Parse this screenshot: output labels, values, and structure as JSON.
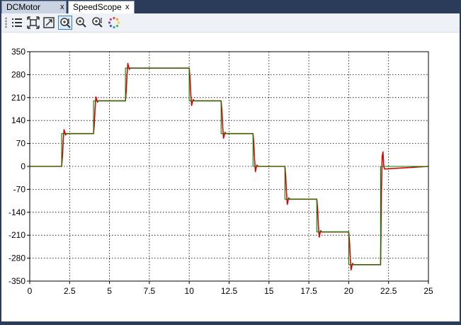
{
  "tabs": [
    {
      "label": "DCMotor",
      "close": "x",
      "active": false
    },
    {
      "label": "SpeedScope",
      "close": "x",
      "active": true
    }
  ],
  "toolbar": {
    "buttons": [
      {
        "icon": "legend-list-icon",
        "active": false
      },
      {
        "icon": "autoscale-icon",
        "active": false
      },
      {
        "icon": "fit-to-view-icon",
        "active": false
      },
      {
        "icon": "zoom-x-icon",
        "active": true
      },
      {
        "icon": "zoom-in-icon",
        "active": false
      },
      {
        "icon": "zoom-y-icon",
        "active": false
      },
      {
        "icon": "loading-spinner-icon",
        "active": false
      }
    ]
  },
  "colors": {
    "reference": "#008000",
    "speed": "#e00000",
    "grid": "#000000"
  },
  "chart_data": {
    "type": "line",
    "title": "",
    "xlabel": "",
    "ylabel": "",
    "xlim": [
      0,
      25
    ],
    "ylim": [
      -350,
      350
    ],
    "xticks": [
      "0",
      "2.5",
      "5",
      "7.5",
      "10",
      "12.5",
      "15",
      "17.5",
      "20",
      "22.5",
      "25"
    ],
    "yticks": [
      "350",
      "280",
      "210",
      "140",
      "70",
      "0",
      "-70",
      "-140",
      "-210",
      "-280",
      "-350"
    ],
    "grid": true,
    "legend": "none",
    "series": [
      {
        "color": "#008000",
        "x": [
          0,
          2,
          2,
          4,
          4,
          6,
          6,
          10,
          10,
          12,
          12,
          14,
          14,
          16,
          16,
          18,
          18,
          20,
          20,
          22,
          22,
          25
        ],
        "y": [
          0,
          0,
          100,
          100,
          200,
          200,
          300,
          300,
          200,
          200,
          100,
          100,
          0,
          0,
          -100,
          -100,
          -200,
          -200,
          -300,
          -300,
          0,
          0
        ]
      },
      {
        "color": "#e00000",
        "x": [
          0,
          2.0,
          2.05,
          2.1,
          2.15,
          2.2,
          2.25,
          2.3,
          4.0,
          4.05,
          4.1,
          4.15,
          4.2,
          4.25,
          4.3,
          6.0,
          6.05,
          6.1,
          6.15,
          6.2,
          6.25,
          6.3,
          10.0,
          10.05,
          10.1,
          10.15,
          10.2,
          10.25,
          10.3,
          12.0,
          12.05,
          12.1,
          12.15,
          12.2,
          12.25,
          12.3,
          14.0,
          14.05,
          14.1,
          14.15,
          14.2,
          14.25,
          14.3,
          16.0,
          16.05,
          16.1,
          16.15,
          16.2,
          16.25,
          16.3,
          18.0,
          18.05,
          18.1,
          18.15,
          18.2,
          18.25,
          18.3,
          20.0,
          20.05,
          20.1,
          20.15,
          20.2,
          20.25,
          20.3,
          22.0,
          22.05,
          22.1,
          22.15,
          22.2,
          22.25,
          25
        ],
        "y": [
          0,
          0,
          30,
          80,
          112,
          104,
          96,
          100,
          100,
          130,
          180,
          212,
          204,
          196,
          200,
          200,
          230,
          280,
          314,
          304,
          296,
          300,
          300,
          270,
          220,
          186,
          196,
          204,
          200,
          200,
          170,
          120,
          86,
          96,
          104,
          100,
          100,
          70,
          20,
          -16,
          -4,
          4,
          0,
          0,
          -30,
          -80,
          -116,
          -104,
          -96,
          -100,
          -100,
          -130,
          -180,
          -216,
          -204,
          -196,
          -200,
          -200,
          -230,
          -280,
          -316,
          -304,
          -296,
          -300,
          -300,
          -80,
          30,
          44,
          0,
          -8,
          0
        ]
      }
    ]
  }
}
